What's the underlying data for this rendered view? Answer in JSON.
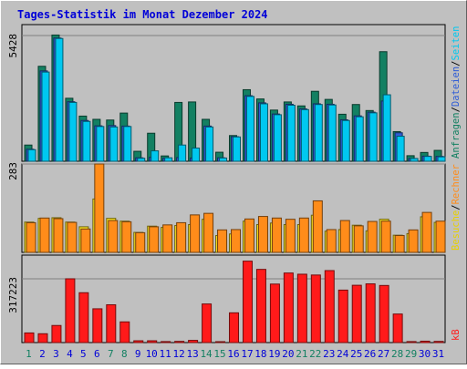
{
  "chart_data": {
    "type": "bar",
    "title": "Tages-Statistik im Monat Dezember 2024",
    "days": [
      "1",
      "2",
      "3",
      "4",
      "5",
      "6",
      "7",
      "8",
      "9",
      "10",
      "11",
      "12",
      "13",
      "14",
      "15",
      "16",
      "17",
      "18",
      "19",
      "20",
      "21",
      "22",
      "23",
      "24",
      "25",
      "26",
      "27",
      "28",
      "29",
      "30",
      "31"
    ],
    "weekend_days": [
      "1",
      "7",
      "8",
      "14",
      "15",
      "21",
      "22",
      "28",
      "29"
    ],
    "panels": [
      {
        "id": "top",
        "y_tick_label": "5428",
        "y_tick_value": 5428,
        "ylim": [
          0,
          5900
        ],
        "series": [
          {
            "key": "anfragen",
            "color": "#138062",
            "values": [
              700,
              4100,
              5450,
              2720,
              1950,
              1810,
              1780,
              2080,
              430,
              1210,
              230,
              2540,
              2560,
              1810,
              390,
              1110,
              3090,
              2690,
              2210,
              2560,
              2390,
              3020,
              2670,
              2030,
              2450,
              2190,
              4730,
              1280,
              240,
              380,
              470
            ]
          },
          {
            "key": "dateien",
            "color": "#2e5cd6",
            "values": [
              520,
              3900,
              5320,
              2570,
              1760,
              1530,
              1540,
              1520,
              150,
              170,
              130,
              160,
              140,
              1520,
              150,
              1060,
              2830,
              2520,
              2040,
              2460,
              2260,
              2480,
              2460,
              1790,
              1960,
              2120,
              2600,
              1230,
              120,
              220,
              210
            ]
          },
          {
            "key": "seiten",
            "color": "#00c8f0",
            "values": [
              500,
              3850,
              5300,
              2540,
              1720,
              1500,
              1480,
              1500,
              130,
              450,
              150,
              700,
              570,
              1480,
              140,
              1050,
              2800,
              2480,
              2010,
              2420,
              2230,
              2450,
              2430,
              1760,
              1920,
              2090,
              2870,
              1080,
              120,
              210,
              190
            ]
          }
        ]
      },
      {
        "id": "middle",
        "y_tick_label": "283",
        "y_tick_value": 283,
        "ylim": [
          0,
          283
        ],
        "series": [
          {
            "key": "besuche",
            "color": "#f7e01f",
            "values": [
              97,
              109,
              111,
              97,
              82,
              171,
              109,
              100,
              64,
              84,
              80,
              86,
              89,
              106,
              54,
              59,
              100,
              89,
              94,
              89,
              89,
              119,
              68,
              73,
              87,
              69,
              106,
              55,
              60,
              114,
              96
            ]
          },
          {
            "key": "rechner",
            "color": "#ff8c1a",
            "values": [
              95,
              110,
              108,
              96,
              75,
              283,
              102,
              98,
              63,
              82,
              88,
              95,
              120,
              125,
              72,
              73,
              107,
              115,
              110,
              106,
              110,
              165,
              73,
              102,
              85,
              99,
              100,
              54,
              72,
              128,
              100
            ]
          }
        ]
      },
      {
        "id": "bottom",
        "y_tick_label": "317223",
        "y_tick_value": 317223,
        "ylim": [
          0,
          435000
        ],
        "series": [
          {
            "key": "kb",
            "color": "#ff1a1a",
            "values": [
              48000,
              44000,
              85000,
              317223,
              248000,
              168000,
              188000,
              103000,
              9000,
              9000,
              5000,
              6000,
              11000,
              192000,
              4000,
              148000,
              405000,
              364000,
              291000,
              346000,
              340000,
              336000,
              358000,
              261000,
              285000,
              292000,
              284000,
              142000,
              5000,
              7000,
              6000
            ]
          }
        ]
      }
    ],
    "right_legend": {
      "top": [
        {
          "text": "Anfragen",
          "color": "#138062"
        },
        {
          "text": "/",
          "color": "#000000"
        },
        {
          "text": "Dateien",
          "color": "#2e5cd6"
        },
        {
          "text": "/",
          "color": "#000000"
        },
        {
          "text": "Seiten",
          "color": "#00c8f0"
        }
      ],
      "middle": [
        {
          "text": "Besuche",
          "color": "#e8d000"
        },
        {
          "text": "/",
          "color": "#000000"
        },
        {
          "text": "Rechner",
          "color": "#ff8c1a"
        }
      ],
      "bottom": [
        {
          "text": "kB",
          "color": "#ff1a1a"
        }
      ]
    },
    "colors": {
      "panel_bg": "#c0c0c0",
      "frame_bg": "#c0c0c0",
      "title": "#0000d8",
      "weekday_label": "#0000d8",
      "weekend_label": "#138062"
    }
  }
}
